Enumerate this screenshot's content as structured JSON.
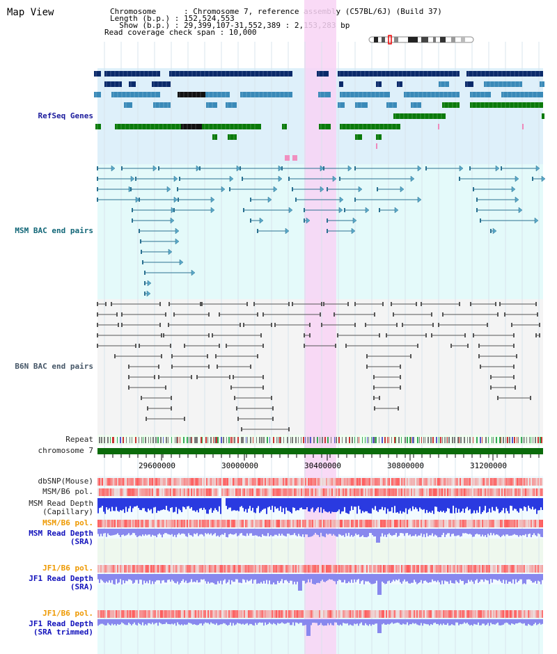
{
  "title": "Map View",
  "info": {
    "chromosome": "Chromosome      : Chromosome 7, reference assembly (C57BL/6J) (Build 37)",
    "length": "Length (b.p.) : 152,524,553",
    "show": "  Show (b.p.) : 29,399,107-31,552,389 : 2,153,283 bp",
    "coverage": "Read coverage check span : 10,000"
  },
  "tracks": {
    "refseq": "RefSeq Genes",
    "msm_bac": "MSM BAC end pairs",
    "b6n_bac": "B6N BAC end pairs",
    "repeat": "Repeat",
    "chromosome": "chromosome 7",
    "dbsnp": "dbSNP(Mouse)",
    "msm_b6_pol_1": "MSM/B6 pol.",
    "msm_depth_cap": "MSM Read Depth",
    "msm_depth_cap_sub": "(Capillary)",
    "msm_b6_pol_2": "MSM/B6 pol.",
    "msm_depth_sra": "MSM Read Depth",
    "msm_depth_sra_sub": "(SRA)",
    "jf1_b6_pol_1": "JF1/B6 pol.",
    "jf1_depth_sra": "JF1 Read Depth",
    "jf1_depth_sra_sub": "(SRA)",
    "jf1_b6_pol_2": "JF1/B6 pol.",
    "jf1_depth_trim": "JF1 Read Depth",
    "jf1_depth_trim_sub": "(SRA trimmed)"
  },
  "ruler": {
    "ticks": [
      "29600000",
      "30000000",
      "30400000",
      "30800000",
      "31200000"
    ]
  },
  "colors": {
    "refseq_bg": "#def0fa",
    "msm_bg": "#e4fafa",
    "b6n_bg": "#f4f4f4",
    "highlight": "#f8d4f4",
    "chrom_bar": "#0b6b0b",
    "gene_dark": "#0a2a6a",
    "gene_mid": "#3a8ab8",
    "gene_green": "#0a7a0a",
    "msm_line": "#2a7090",
    "b6n_line": "#555555"
  }
}
